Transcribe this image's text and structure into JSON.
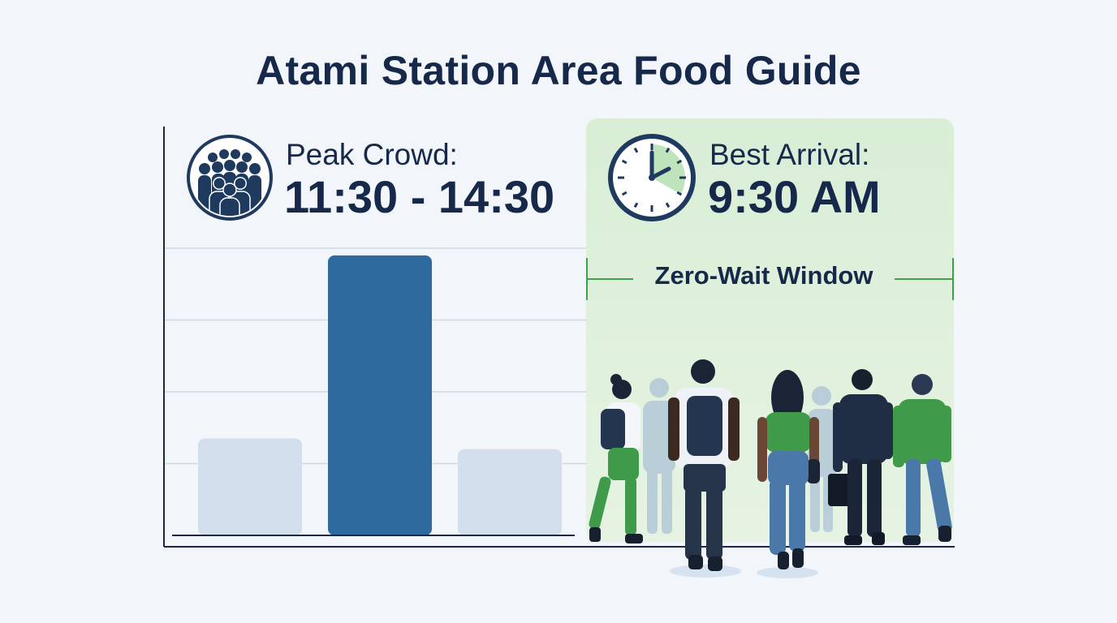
{
  "title": "Atami Station Area Food Guide",
  "peak": {
    "label": "Peak Crowd:",
    "value": "11:30 - 14:30",
    "icon": "crowd-icon"
  },
  "best": {
    "label": "Best Arrival:",
    "value": "9:30 AM",
    "icon": "clock-icon"
  },
  "window": {
    "label": "Zero-Wait Window"
  },
  "chart_data": {
    "type": "bar",
    "categories": [
      "",
      "",
      ""
    ],
    "values": [
      1.35,
      3.9,
      1.2
    ],
    "ylim": [
      0,
      4.0
    ],
    "grid": true,
    "highlight_index": 1,
    "annotation": "Zero-Wait Window"
  },
  "colors": {
    "navy": "#16294a",
    "peak_bar": "#2f6a9e",
    "muted_bar": "#d2deeb",
    "green": "#4caf50",
    "window_bg": "#dcefd9"
  }
}
